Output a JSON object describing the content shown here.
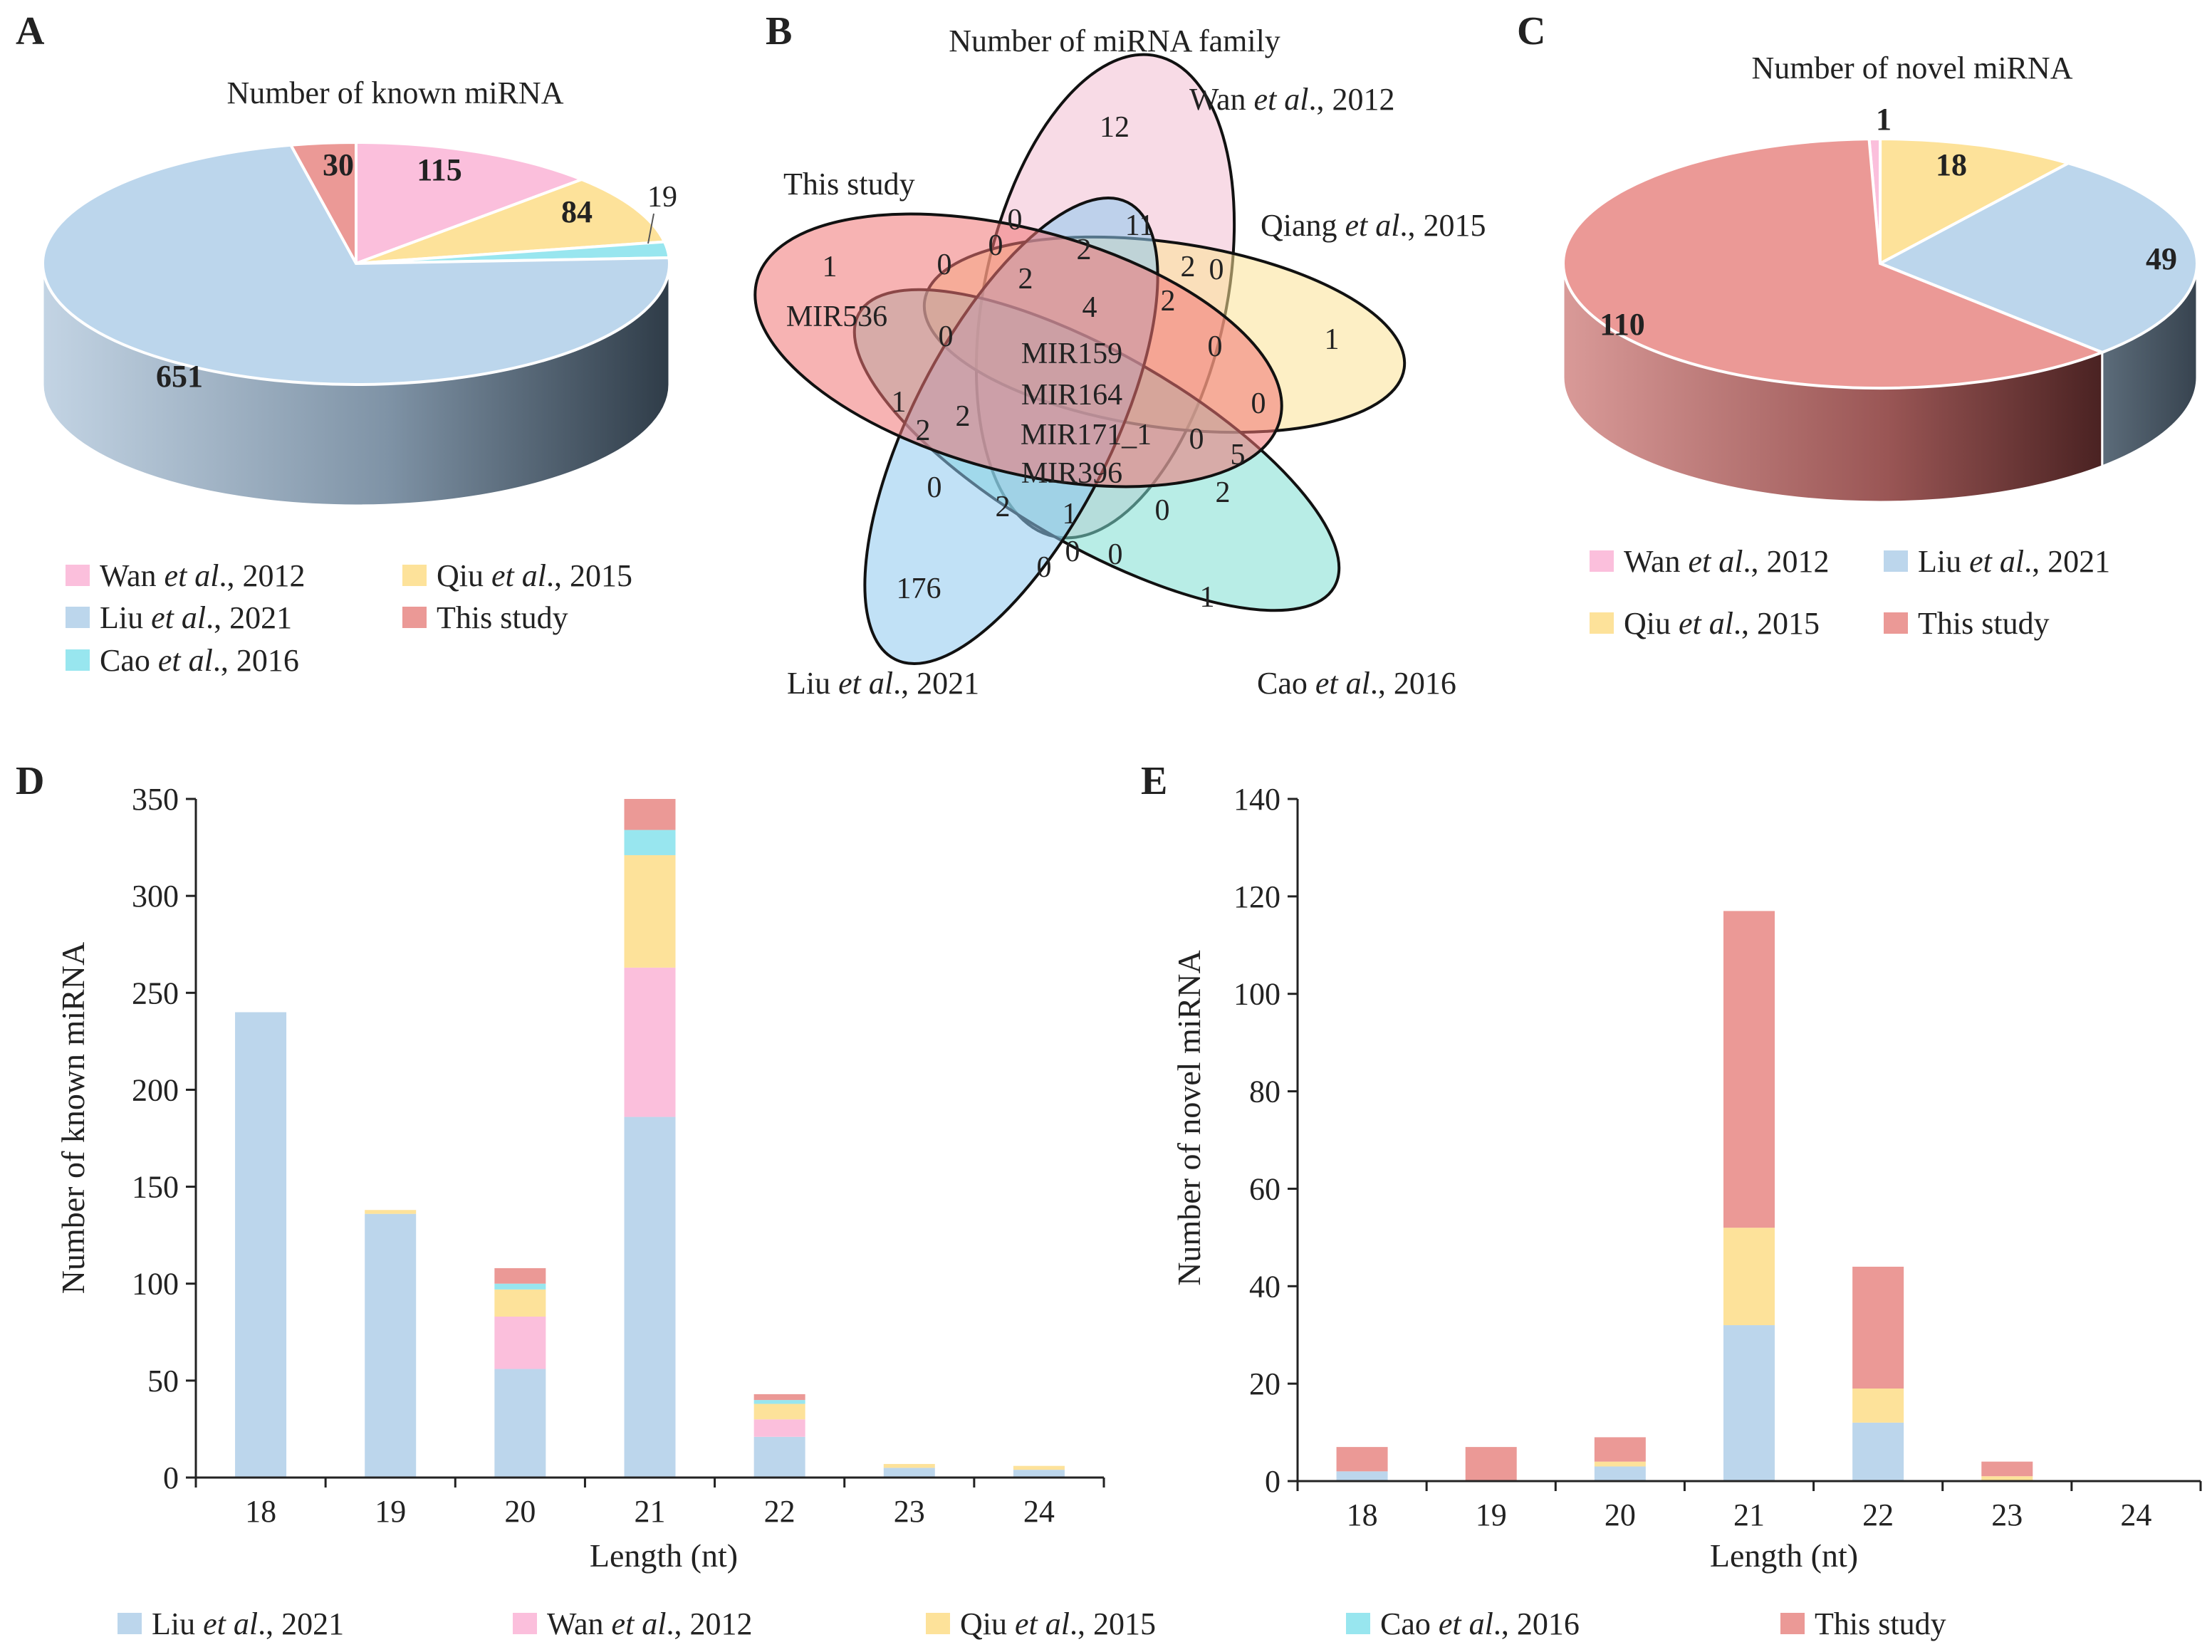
{
  "colors": {
    "liu": "#bcd6ec",
    "wan": "#fbbfdc",
    "qiu": "#fde29a",
    "cao": "#98e6ef",
    "this": "#eb9996"
  },
  "panels": {
    "a": "A",
    "b": "B",
    "c": "C",
    "d": "D",
    "e": "E"
  },
  "pie_a": {
    "title": "Number of known miRNA",
    "labels": {
      "wan": "115",
      "qiu": "84",
      "cao": "19",
      "liu": "651",
      "this": "30"
    },
    "legend": [
      {
        "key": "wan",
        "pre": "Wan ",
        "it": "et al",
        "post": "., 2012"
      },
      {
        "key": "qiu",
        "pre": "Qiu ",
        "it": "et al",
        "post": "., 2015"
      },
      {
        "key": "liu",
        "pre": "Liu ",
        "it": "et al",
        "post": "., 2021"
      },
      {
        "key": "this",
        "pre": "This study",
        "it": "",
        "post": ""
      },
      {
        "key": "cao",
        "pre": "Cao ",
        "it": "et al",
        "post": "., 2016"
      }
    ]
  },
  "venn": {
    "title": "Number of  miRNA family",
    "sets": {
      "wan": {
        "pre": "Wan ",
        "it": "et al",
        "post": "., 2012"
      },
      "qiang": {
        "pre": "Qiang ",
        "it": "et al",
        "post": "., 2015"
      },
      "cao": {
        "pre": "Cao ",
        "it": "et al",
        "post": "., 2016"
      },
      "liu": {
        "pre": "Liu ",
        "it": "et al",
        "post": "., 2021"
      },
      "this": {
        "pre": "This study",
        "it": "",
        "post": ""
      }
    },
    "uniques": {
      "wan": "12",
      "qiang": "1",
      "cao": "1",
      "liu": "176",
      "this": "1"
    },
    "this_unique_family": "MIR536",
    "center_families": [
      "MIR159",
      "MIR164",
      "MIR171_1",
      "MIR396"
    ],
    "overlap_counts": [
      "0",
      "11",
      "0",
      "2",
      "2",
      "0",
      "2",
      "4",
      "2",
      "0",
      "0",
      "1",
      "2",
      "2",
      "0",
      "0",
      "0",
      "5",
      "0",
      "2",
      "1",
      "0",
      "2",
      "0",
      "0"
    ]
  },
  "pie_c": {
    "title": "Number of novel miRNA",
    "labels": {
      "wan": "1",
      "qiu": "18",
      "liu": "49",
      "this": "110"
    },
    "legend": [
      {
        "key": "wan",
        "pre": "Wan ",
        "it": "et al",
        "post": "., 2012"
      },
      {
        "key": "liu",
        "pre": "Liu ",
        "it": "et al",
        "post": "., 2021"
      },
      {
        "key": "qiu",
        "pre": "Qiu ",
        "it": "et al",
        "post": "., 2015"
      },
      {
        "key": "this",
        "pre": "This study",
        "it": "",
        "post": ""
      }
    ]
  },
  "bottom_legend": [
    {
      "key": "liu",
      "pre": "Liu ",
      "it": "et al",
      "post": "., 2021"
    },
    {
      "key": "wan",
      "pre": "Wan ",
      "it": "et al",
      "post": "., 2012"
    },
    {
      "key": "qiu",
      "pre": "Qiu ",
      "it": "et al",
      "post": "., 2015"
    },
    {
      "key": "cao",
      "pre": "Cao ",
      "it": "et al",
      "post": "., 2016"
    },
    {
      "key": "this",
      "pre": "This study",
      "it": "",
      "post": ""
    }
  ],
  "chart_data": [
    {
      "panel": "A",
      "type": "pie",
      "title": "Number of known miRNA",
      "slices": [
        {
          "key": "wan",
          "name": "Wan et al., 2012",
          "value": 115
        },
        {
          "key": "qiu",
          "name": "Qiu et al., 2015",
          "value": 84
        },
        {
          "key": "cao",
          "name": "Cao et al., 2016",
          "value": 19
        },
        {
          "key": "liu",
          "name": "Liu et al., 2021",
          "value": 651
        },
        {
          "key": "this",
          "name": "This study",
          "value": 30
        }
      ]
    },
    {
      "panel": "C",
      "type": "pie",
      "title": "Number of novel miRNA",
      "slices": [
        {
          "key": "wan",
          "name": "Wan et al., 2012",
          "value": 1
        },
        {
          "key": "qiu",
          "name": "Qiu et al., 2015",
          "value": 18
        },
        {
          "key": "liu",
          "name": "Liu et al., 2021",
          "value": 49
        },
        {
          "key": "this",
          "name": "This study",
          "value": 110
        }
      ]
    },
    {
      "panel": "D",
      "type": "bar",
      "stacked": true,
      "xlabel": "Length (nt)",
      "ylabel": "Number of known miRNA",
      "categories": [
        "18",
        "19",
        "20",
        "21",
        "22",
        "23",
        "24"
      ],
      "ylim": [
        0,
        350
      ],
      "yticks": [
        0,
        50,
        100,
        150,
        200,
        250,
        300,
        350
      ],
      "series": [
        {
          "key": "liu",
          "name": "Liu et al., 2021",
          "values": [
            240,
            136,
            56,
            186,
            21,
            5,
            4
          ]
        },
        {
          "key": "wan",
          "name": "Wan et al., 2012",
          "values": [
            0,
            0,
            27,
            77,
            9,
            0,
            0
          ]
        },
        {
          "key": "qiu",
          "name": "Qiu et al., 2015",
          "values": [
            0,
            2,
            14,
            58,
            8,
            2,
            2
          ]
        },
        {
          "key": "cao",
          "name": "Cao et al., 2016",
          "values": [
            0,
            0,
            3,
            13,
            2,
            0,
            0
          ]
        },
        {
          "key": "this",
          "name": "This study",
          "values": [
            0,
            0,
            8,
            16,
            3,
            0,
            0
          ]
        }
      ]
    },
    {
      "panel": "E",
      "type": "bar",
      "stacked": true,
      "xlabel": "Length (nt)",
      "ylabel": "Number of novel miRNA",
      "categories": [
        "18",
        "19",
        "20",
        "21",
        "22",
        "23",
        "24"
      ],
      "ylim": [
        0,
        140
      ],
      "yticks": [
        0,
        20,
        40,
        60,
        80,
        100,
        120,
        140
      ],
      "series": [
        {
          "key": "liu",
          "name": "Liu et al., 2021",
          "values": [
            2,
            0,
            3,
            32,
            12,
            0,
            0
          ]
        },
        {
          "key": "wan",
          "name": "Wan et al., 2012",
          "values": [
            0,
            0,
            0,
            0,
            0,
            0,
            0
          ]
        },
        {
          "key": "qiu",
          "name": "Qiu et al., 2015",
          "values": [
            0,
            0,
            1,
            20,
            7,
            1,
            0
          ]
        },
        {
          "key": "cao",
          "name": "Cao et al., 2016",
          "values": [
            0,
            0,
            0,
            0,
            0,
            0,
            0
          ]
        },
        {
          "key": "this",
          "name": "This study",
          "values": [
            5,
            7,
            5,
            65,
            25,
            3,
            0
          ]
        }
      ]
    }
  ]
}
